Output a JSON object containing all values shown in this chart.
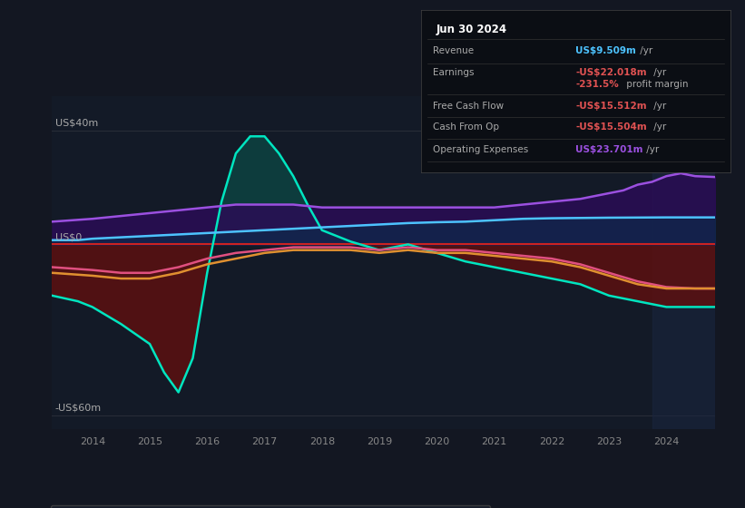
{
  "bg_color": "#131722",
  "plot_bg_color": "#131a27",
  "title_date": "Jun 30 2024",
  "ylabel_top": "US$40m",
  "ylabel_zero": "US$0",
  "ylabel_bot": "-US$60m",
  "ylim": [
    -65,
    52
  ],
  "xlim_start": 2013.3,
  "xlim_end": 2024.85,
  "xticks": [
    2014,
    2015,
    2016,
    2017,
    2018,
    2019,
    2020,
    2021,
    2022,
    2023,
    2024
  ],
  "zero_line_color": "#cc2222",
  "grid_color": "#2a2e39",
  "highlight_start": 2023.75,
  "revenue_color": "#4dc3ff",
  "earnings_color": "#00e5c0",
  "fcf_color": "#e05080",
  "cop_color": "#e09030",
  "opex_color": "#9b50e0",
  "revenue": {
    "x": [
      2013.3,
      2013.75,
      2014.0,
      2014.5,
      2015.0,
      2015.5,
      2016.0,
      2016.5,
      2017.0,
      2017.5,
      2018.0,
      2018.5,
      2019.0,
      2019.5,
      2020.0,
      2020.5,
      2021.0,
      2021.5,
      2022.0,
      2022.5,
      2023.0,
      2023.5,
      2024.0,
      2024.5,
      2024.85
    ],
    "y": [
      1.5,
      1.5,
      2.0,
      2.5,
      3.0,
      3.5,
      4.0,
      4.5,
      5.0,
      5.5,
      6.0,
      6.5,
      7.0,
      7.5,
      7.8,
      8.0,
      8.5,
      9.0,
      9.2,
      9.3,
      9.4,
      9.45,
      9.5,
      9.5,
      9.5
    ]
  },
  "earnings": {
    "x": [
      2013.3,
      2013.75,
      2014.0,
      2014.5,
      2015.0,
      2015.25,
      2015.5,
      2015.75,
      2016.0,
      2016.25,
      2016.5,
      2016.75,
      2017.0,
      2017.25,
      2017.5,
      2017.75,
      2018.0,
      2018.5,
      2019.0,
      2019.5,
      2020.0,
      2020.5,
      2021.0,
      2021.5,
      2022.0,
      2022.5,
      2023.0,
      2023.5,
      2024.0,
      2024.5,
      2024.85
    ],
    "y": [
      -18,
      -20,
      -22,
      -28,
      -35,
      -45,
      -52,
      -40,
      -10,
      15,
      32,
      38,
      38,
      32,
      24,
      14,
      5,
      1,
      -2,
      0,
      -3,
      -6,
      -8,
      -10,
      -12,
      -14,
      -18,
      -20,
      -22,
      -22,
      -22
    ]
  },
  "free_cash_flow": {
    "x": [
      2013.3,
      2014.0,
      2014.5,
      2015.0,
      2015.5,
      2016.0,
      2016.5,
      2017.0,
      2017.5,
      2018.0,
      2018.5,
      2019.0,
      2019.5,
      2020.0,
      2020.5,
      2021.0,
      2021.5,
      2022.0,
      2022.5,
      2023.0,
      2023.5,
      2024.0,
      2024.5,
      2024.85
    ],
    "y": [
      -8,
      -9,
      -10,
      -10,
      -8,
      -5,
      -3,
      -2,
      -1,
      -1,
      -1,
      -2,
      -1,
      -2,
      -2,
      -3,
      -4,
      -5,
      -7,
      -10,
      -13,
      -15,
      -15.5,
      -15.5
    ]
  },
  "cash_from_op": {
    "x": [
      2013.3,
      2014.0,
      2014.5,
      2015.0,
      2015.5,
      2016.0,
      2016.5,
      2017.0,
      2017.5,
      2018.0,
      2018.5,
      2019.0,
      2019.5,
      2020.0,
      2020.5,
      2021.0,
      2021.5,
      2022.0,
      2022.5,
      2023.0,
      2023.5,
      2024.0,
      2024.5,
      2024.85
    ],
    "y": [
      -10,
      -11,
      -12,
      -12,
      -10,
      -7,
      -5,
      -3,
      -2,
      -2,
      -2,
      -3,
      -2,
      -3,
      -3,
      -4,
      -5,
      -6,
      -8,
      -11,
      -14,
      -15.5,
      -15.5,
      -15.5
    ]
  },
  "operating_expenses": {
    "x": [
      2013.3,
      2014.0,
      2014.5,
      2015.0,
      2015.5,
      2016.0,
      2016.5,
      2017.0,
      2017.5,
      2018.0,
      2018.5,
      2019.0,
      2019.5,
      2020.0,
      2020.5,
      2021.0,
      2021.5,
      2022.0,
      2022.5,
      2023.0,
      2023.25,
      2023.5,
      2023.75,
      2024.0,
      2024.25,
      2024.5,
      2024.85
    ],
    "y": [
      8,
      9,
      10,
      11,
      12,
      13,
      14,
      14,
      14,
      13,
      13,
      13,
      13,
      13,
      13,
      13,
      14,
      15,
      16,
      18,
      19,
      21,
      22,
      24,
      25,
      24,
      23.7
    ]
  }
}
